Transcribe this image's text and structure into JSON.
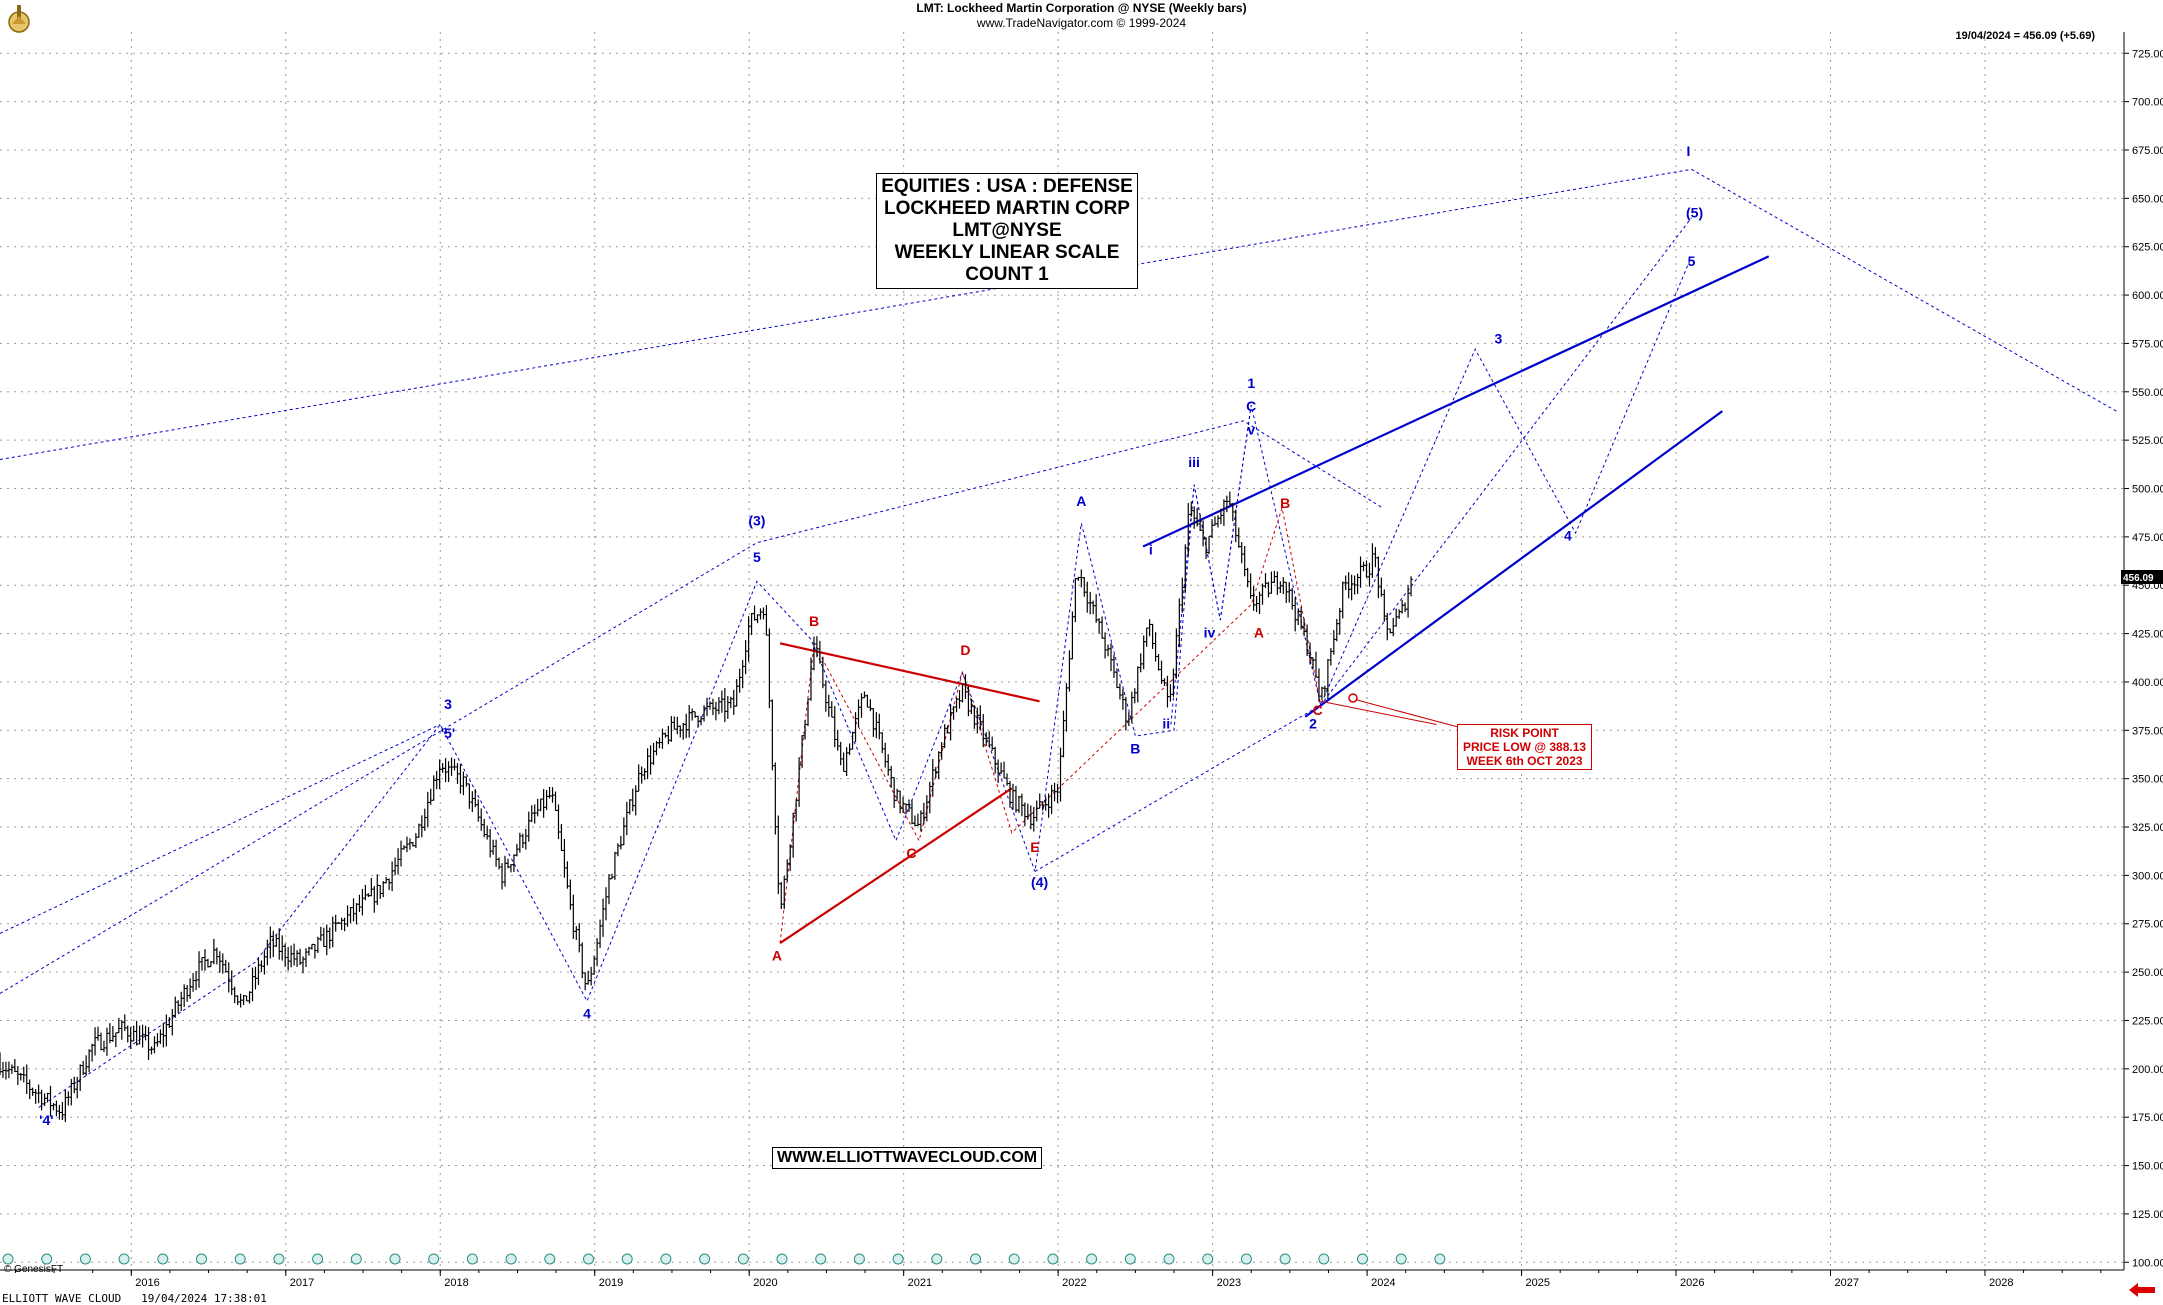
{
  "header": {
    "title": "LMT:  Lockheed Martin Corporation @ NYSE  (Weekly bars)",
    "source": "www.TradeNavigator.com © 1999-2024"
  },
  "last_quote": "19/04/2024 = 456.09 (+5.69)",
  "price_tag": "456.09",
  "title_box": {
    "lines": [
      "EQUITIES : USA : DEFENSE",
      "LOCKHEED MARTIN CORP",
      "LMT@NYSE",
      "WEEKLY LINEAR SCALE",
      "COUNT 1"
    ]
  },
  "website": "WWW.ELLIOTTWAVECLOUD.COM",
  "risk_box": [
    "RISK POINT",
    "PRICE LOW @ 388.13",
    "WEEK 6th OCT 2023"
  ],
  "footer": "ELLIOTT WAVE CLOUD   19/04/2024 17:38:01",
  "genesis": "© GenesisFT",
  "colors": {
    "bars": "#000000",
    "blue": "#0000cc",
    "red": "#cc0000",
    "grid": "#9a9a9a"
  },
  "chart_data": {
    "type": "line",
    "series_style": "ohlc-bars",
    "x_axis": {
      "type": "year",
      "ticks": [
        2016,
        2017,
        2018,
        2019,
        2020,
        2021,
        2022,
        2023,
        2024,
        2025,
        2026,
        2027,
        2028
      ],
      "range": [
        2015.15,
        2028.9
      ]
    },
    "y_axis": {
      "ticks": [
        100,
        125,
        150,
        175,
        200,
        225,
        250,
        275,
        300,
        325,
        350,
        375,
        400,
        425,
        450,
        475,
        500,
        525,
        550,
        575,
        600,
        625,
        650,
        675,
        700,
        725
      ],
      "tick_format": "0.00",
      "range": [
        96,
        736
      ],
      "side": "right"
    },
    "grid": true,
    "price_path": [
      [
        2015.15,
        203
      ],
      [
        2015.35,
        190
      ],
      [
        2015.55,
        178
      ],
      [
        2015.75,
        212
      ],
      [
        2015.95,
        221
      ],
      [
        2016.15,
        210
      ],
      [
        2016.4,
        248
      ],
      [
        2016.55,
        262
      ],
      [
        2016.72,
        232
      ],
      [
        2016.9,
        265
      ],
      [
        2017.1,
        255
      ],
      [
        2017.35,
        275
      ],
      [
        2017.6,
        292
      ],
      [
        2017.85,
        322
      ],
      [
        2018.0,
        358
      ],
      [
        2018.15,
        348
      ],
      [
        2018.4,
        300
      ],
      [
        2018.6,
        330
      ],
      [
        2018.72,
        342
      ],
      [
        2018.85,
        280
      ],
      [
        2018.95,
        240
      ],
      [
        2019.1,
        300
      ],
      [
        2019.3,
        355
      ],
      [
        2019.5,
        375
      ],
      [
        2019.7,
        385
      ],
      [
        2019.9,
        388
      ],
      [
        2020.0,
        430
      ],
      [
        2020.1,
        440
      ],
      [
        2020.2,
        280
      ],
      [
        2020.3,
        340
      ],
      [
        2020.42,
        420
      ],
      [
        2020.6,
        355
      ],
      [
        2020.75,
        395
      ],
      [
        2020.95,
        340
      ],
      [
        2021.1,
        325
      ],
      [
        2021.25,
        370
      ],
      [
        2021.38,
        395
      ],
      [
        2021.5,
        375
      ],
      [
        2021.7,
        340
      ],
      [
        2021.83,
        330
      ],
      [
        2022.0,
        345
      ],
      [
        2022.12,
        460
      ],
      [
        2022.3,
        420
      ],
      [
        2022.45,
        380
      ],
      [
        2022.58,
        430
      ],
      [
        2022.72,
        385
      ],
      [
        2022.85,
        490
      ],
      [
        2022.95,
        470
      ],
      [
        2023.1,
        495
      ],
      [
        2023.25,
        440
      ],
      [
        2023.45,
        455
      ],
      [
        2023.63,
        415
      ],
      [
        2023.7,
        390
      ],
      [
        2023.85,
        450
      ],
      [
        2024.0,
        458
      ],
      [
        2024.05,
        465
      ],
      [
        2024.12,
        425
      ],
      [
        2024.22,
        435
      ],
      [
        2024.3,
        456
      ]
    ],
    "wave_paths": [
      {
        "color": "blue",
        "style": "dotted",
        "points": [
          [
            2015.4,
            180
          ],
          [
            2016.8,
            255
          ],
          [
            2018.0,
            378
          ],
          [
            2018.95,
            235
          ],
          [
            2020.05,
            452
          ],
          [
            2020.4,
            422
          ],
          [
            2020.95,
            318
          ],
          [
            2021.38,
            405
          ],
          [
            2021.85,
            302
          ],
          [
            2022.15,
            482
          ],
          [
            2022.5,
            372
          ],
          [
            2022.75,
            375
          ],
          [
            2022.88,
            502
          ],
          [
            2023.05,
            432
          ],
          [
            2023.25,
            543
          ],
          [
            2023.7,
            388
          ],
          [
            2024.7,
            572
          ],
          [
            2025.35,
            477
          ],
          [
            2026.1,
            620
          ]
        ]
      },
      {
        "color": "blue",
        "style": "dotted",
        "points": [
          [
            2015.15,
            239
          ],
          [
            2020.05,
            472
          ],
          [
            2023.2,
            535
          ],
          [
            2024.1,
            490
          ]
        ]
      },
      {
        "color": "blue",
        "style": "dotted",
        "points": [
          [
            2015.15,
            270
          ],
          [
            2018.0,
            378
          ]
        ]
      },
      {
        "color": "blue",
        "style": "dotted",
        "points": [
          [
            2015.15,
            515
          ],
          [
            2026.1,
            665
          ],
          [
            2028.85,
            540
          ]
        ]
      },
      {
        "color": "blue",
        "style": "dotted",
        "points": [
          [
            2021.85,
            302
          ],
          [
            2023.7,
            388
          ],
          [
            2026.1,
            640
          ]
        ]
      },
      {
        "color": "blue",
        "style": "dotted",
        "points": [
          [
            2022.73,
            378
          ],
          [
            2022.88,
            502
          ],
          [
            2023.05,
            432
          ],
          [
            2023.25,
            543
          ]
        ]
      },
      {
        "color": "red",
        "style": "dotted",
        "points": [
          [
            2020.2,
            265
          ],
          [
            2020.42,
            420
          ],
          [
            2021.1,
            318
          ],
          [
            2021.38,
            405
          ],
          [
            2021.7,
            322
          ],
          [
            2023.25,
            440
          ],
          [
            2023.45,
            490
          ],
          [
            2023.7,
            388
          ]
        ]
      }
    ],
    "trendlines": [
      {
        "color": "blue",
        "points": [
          [
            2022.55,
            470
          ],
          [
            2026.6,
            620
          ]
        ]
      },
      {
        "color": "blue",
        "points": [
          [
            2023.6,
            382
          ],
          [
            2026.3,
            540
          ]
        ]
      },
      {
        "color": "red",
        "points": [
          [
            2020.2,
            265
          ],
          [
            2021.7,
            345
          ]
        ]
      },
      {
        "color": "red",
        "points": [
          [
            2020.2,
            420
          ],
          [
            2021.88,
            390
          ]
        ]
      },
      {
        "color": "red",
        "points": [
          [
            2023.7,
            390
          ],
          [
            2024.45,
            378
          ]
        ]
      }
    ],
    "wave_labels": [
      {
        "text": "'4'",
        "x": 2015.45,
        "y": 171,
        "color": "blue"
      },
      {
        "text": "3",
        "x": 2018.05,
        "y": 386,
        "color": "blue"
      },
      {
        "text": "'5'",
        "x": 2018.05,
        "y": 371,
        "color": "blue"
      },
      {
        "text": "4",
        "x": 2018.95,
        "y": 226,
        "color": "blue"
      },
      {
        "text": "(3)",
        "x": 2020.05,
        "y": 481,
        "color": "blue"
      },
      {
        "text": "5",
        "x": 2020.05,
        "y": 462,
        "color": "blue"
      },
      {
        "text": "A",
        "x": 2020.18,
        "y": 256,
        "color": "red"
      },
      {
        "text": "B",
        "x": 2020.42,
        "y": 429,
        "color": "red"
      },
      {
        "text": "C",
        "x": 2021.05,
        "y": 309,
        "color": "red"
      },
      {
        "text": "D",
        "x": 2021.4,
        "y": 414,
        "color": "red"
      },
      {
        "text": "E",
        "x": 2021.85,
        "y": 312,
        "color": "red"
      },
      {
        "text": "(4)",
        "x": 2021.88,
        "y": 294,
        "color": "blue"
      },
      {
        "text": "A",
        "x": 2022.15,
        "y": 491,
        "color": "blue"
      },
      {
        "text": "B",
        "x": 2022.5,
        "y": 363,
        "color": "blue"
      },
      {
        "text": "i",
        "x": 2022.6,
        "y": 466,
        "color": "blue"
      },
      {
        "text": "ii",
        "x": 2022.7,
        "y": 376,
        "color": "blue"
      },
      {
        "text": "iii",
        "x": 2022.88,
        "y": 511,
        "color": "blue"
      },
      {
        "text": "iv",
        "x": 2022.98,
        "y": 423,
        "color": "blue"
      },
      {
        "text": "1",
        "x": 2023.25,
        "y": 552,
        "color": "blue"
      },
      {
        "text": "C",
        "x": 2023.25,
        "y": 540,
        "color": "blue"
      },
      {
        "text": "v",
        "x": 2023.25,
        "y": 528,
        "color": "blue"
      },
      {
        "text": "A",
        "x": 2023.3,
        "y": 423,
        "color": "red"
      },
      {
        "text": "B",
        "x": 2023.47,
        "y": 490,
        "color": "red"
      },
      {
        "text": "C",
        "x": 2023.68,
        "y": 383,
        "color": "red"
      },
      {
        "text": "2",
        "x": 2023.65,
        "y": 376,
        "color": "blue"
      },
      {
        "text": "3",
        "x": 2024.85,
        "y": 575,
        "color": "blue"
      },
      {
        "text": "4",
        "x": 2025.3,
        "y": 473,
        "color": "blue"
      },
      {
        "text": "5",
        "x": 2026.1,
        "y": 615,
        "color": "blue"
      },
      {
        "text": "(5)",
        "x": 2026.12,
        "y": 640,
        "color": "blue"
      },
      {
        "text": "I",
        "x": 2026.08,
        "y": 672,
        "color": "blue"
      }
    ]
  }
}
